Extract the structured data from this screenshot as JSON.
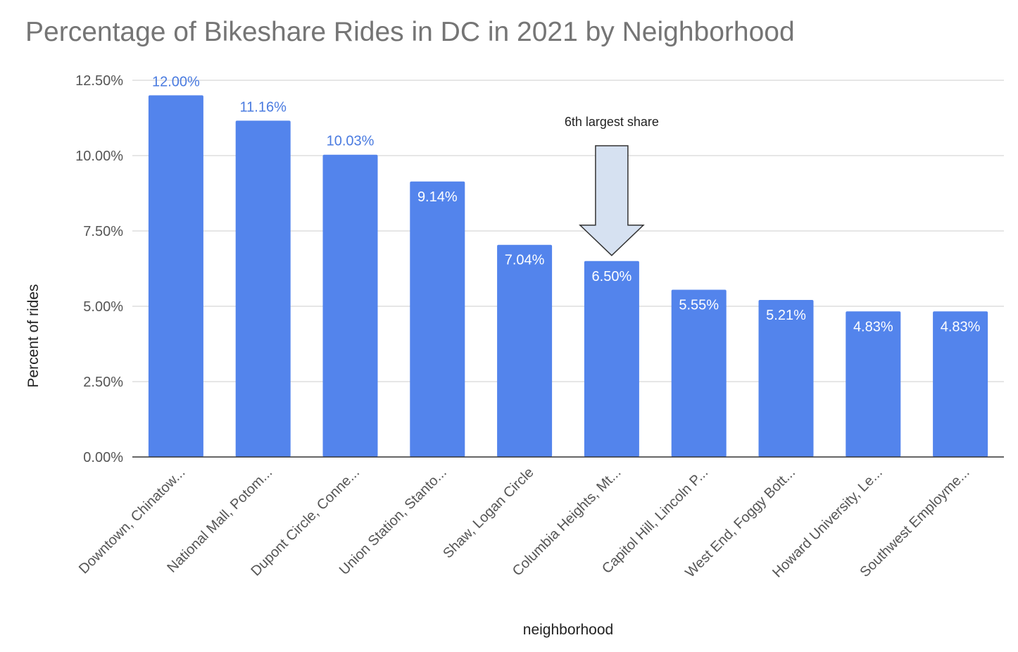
{
  "chart_data": {
    "type": "bar",
    "title": "Percentage of Bikeshare Rides in DC in 2021 by Neighborhood",
    "xlabel": "neighborhood",
    "ylabel": "Percent of rides",
    "ylim": [
      0,
      12.5
    ],
    "yticks": [
      "0.00%",
      "2.50%",
      "5.00%",
      "7.50%",
      "10.00%",
      "12.50%"
    ],
    "categories": [
      "Downtown, Chinatow...",
      "National Mall, Potom...",
      "Dupont Circle, Conne...",
      "Union Station, Stanto...",
      "Shaw, Logan Circle",
      "Columbia Heights, Mt...",
      "Capitol Hill, Lincoln P...",
      "West End, Foggy Bott...",
      "Howard University, Le...",
      "Southwest Employme..."
    ],
    "values": [
      12.0,
      11.16,
      10.03,
      9.14,
      7.04,
      6.5,
      5.55,
      5.21,
      4.83,
      4.83
    ],
    "value_labels": [
      "12.00%",
      "11.16%",
      "10.03%",
      "9.14%",
      "7.04%",
      "6.50%",
      "5.55%",
      "5.21%",
      "4.83%",
      "4.83%"
    ],
    "grid": true,
    "colors": {
      "bar": "#5384ec",
      "label_outside": "#4a7be0",
      "label_inside": "#ffffff",
      "gridline": "#cccccc",
      "baseline": "#333333",
      "arrow_fill": "#d6e1f1",
      "arrow_stroke": "#333333"
    },
    "annotation": {
      "text": "6th largest share",
      "target_category": 5,
      "shape": "down-arrow"
    }
  }
}
